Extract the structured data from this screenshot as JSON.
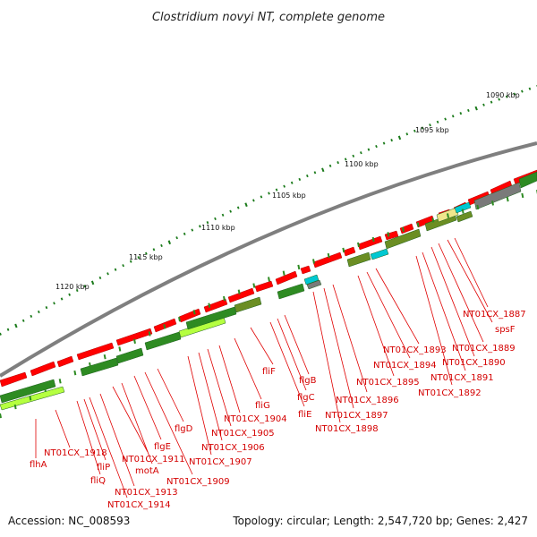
{
  "map": {
    "title": "Clostridium novyi NT, complete genome",
    "accession": "Accession: NC_008593",
    "topology_summary": "Topology: circular; Length: 2,547,720 bp; Genes: 2,427",
    "ticks": [
      {
        "label": "1090 kbp"
      },
      {
        "label": "1095 kbp"
      },
      {
        "label": "1100 kbp"
      },
      {
        "label": "1105 kbp"
      },
      {
        "label": "1110 kbp"
      },
      {
        "label": "1115 kbp"
      },
      {
        "label": "1120 kbp"
      }
    ],
    "gene_labels": [
      "NT01CX_1887",
      "spsF",
      "NT01CX_1889",
      "NT01CX_1890",
      "NT01CX_1891",
      "NT01CX_1892",
      "NT01CX_1893",
      "NT01CX_1894",
      "NT01CX_1895",
      "NT01CX_1896",
      "NT01CX_1897",
      "NT01CX_1898",
      "fliF",
      "flgB",
      "flgC",
      "fliE",
      "fliG",
      "NT01CX_1904",
      "NT01CX_1905",
      "NT01CX_1906",
      "NT01CX_1907",
      "flgD",
      "flgE",
      "NT01CX_1909",
      "NT01CX_1911",
      "motA",
      "NT01CX_1913",
      "NT01CX_1914",
      "fliQ",
      "fliP",
      "NT01CX_1918",
      "flhA"
    ],
    "colors": {
      "backbone": "#7f7f7f",
      "forward_cds": "#ff0000",
      "dark_green": "#2e8b22",
      "olive_green": "#6b8e23",
      "light_green": "#b5ff40",
      "tan": "#f0e68c",
      "cyan": "#00c8d2",
      "gray": "#7a7a7a",
      "ticks": "#1a7a1a",
      "label_red": "#d40000"
    }
  }
}
